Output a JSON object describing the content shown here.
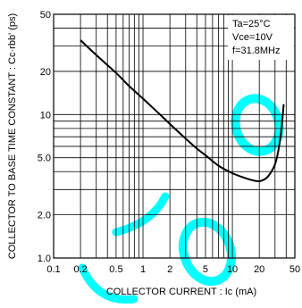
{
  "chart_data": {
    "type": "line",
    "x_scale": "log",
    "y_scale": "log",
    "xlim": [
      0.1,
      50
    ],
    "ylim": [
      1.0,
      50
    ],
    "grid": true,
    "xlabel": "COLLECTOR  CURRENT : Ic (mA)",
    "ylabel": "COLLECTOR TO BASE TIME CONSTANT : Cc·rbb' (ps)",
    "x_ticks": [
      {
        "value": 0.1,
        "label": "0.1"
      },
      {
        "value": 0.2,
        "label": "0.2"
      },
      {
        "value": 0.5,
        "label": "0.5"
      },
      {
        "value": 1,
        "label": "1"
      },
      {
        "value": 2,
        "label": "2"
      },
      {
        "value": 5,
        "label": "5"
      },
      {
        "value": 10,
        "label": "10"
      },
      {
        "value": 20,
        "label": "20"
      },
      {
        "value": 50,
        "label": "50"
      }
    ],
    "y_ticks": [
      {
        "value": 1.0,
        "label": "1.0"
      },
      {
        "value": 2.0,
        "label": "2.0"
      },
      {
        "value": 5.0,
        "label": "5.0"
      },
      {
        "value": 10,
        "label": "10"
      },
      {
        "value": 20,
        "label": "20"
      },
      {
        "value": 50,
        "label": "50"
      }
    ],
    "conditions": [
      "Ta=25°C",
      "Vce=10V",
      "f=31.8MHz"
    ],
    "series": [
      {
        "values": [
          {
            "x": 0.2,
            "y": 33
          },
          {
            "x": 0.3,
            "y": 26
          },
          {
            "x": 0.5,
            "y": 19.5
          },
          {
            "x": 0.7,
            "y": 15.8
          },
          {
            "x": 1.0,
            "y": 12.9
          },
          {
            "x": 1.5,
            "y": 10.2
          },
          {
            "x": 2.0,
            "y": 8.6
          },
          {
            "x": 3.0,
            "y": 6.8
          },
          {
            "x": 4.0,
            "y": 5.8
          },
          {
            "x": 5.0,
            "y": 5.2
          },
          {
            "x": 7.0,
            "y": 4.4
          },
          {
            "x": 10,
            "y": 3.9
          },
          {
            "x": 14,
            "y": 3.6
          },
          {
            "x": 18,
            "y": 3.45
          },
          {
            "x": 21,
            "y": 3.45
          },
          {
            "x": 25,
            "y": 3.7
          },
          {
            "x": 30,
            "y": 4.5
          },
          {
            "x": 33,
            "y": 5.8
          },
          {
            "x": 35.5,
            "y": 8.0
          },
          {
            "x": 37.5,
            "y": 11.8
          }
        ]
      }
    ]
  },
  "colors": {
    "line": "#000000",
    "grid": "#000000",
    "background": "#ffffff",
    "watermark": "#00ffff"
  }
}
